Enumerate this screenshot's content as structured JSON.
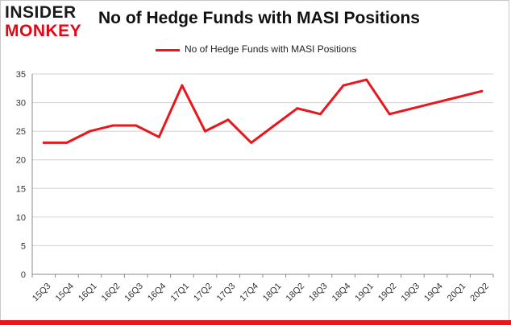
{
  "logo": {
    "line1": "INSIDER",
    "line2": "MONKEY"
  },
  "title": "No of Hedge Funds with MASI Positions",
  "colors": {
    "series": "#e8171e",
    "grid": "#d0d0d0",
    "axis": "#888888",
    "text": "#333333",
    "logo_red": "#e30613"
  },
  "chart_data": {
    "type": "line",
    "title": "No of Hedge Funds with MASI Positions",
    "xlabel": "",
    "ylabel": "",
    "categories": [
      "15Q3",
      "15Q4",
      "16Q1",
      "16Q2",
      "16Q3",
      "16Q4",
      "17Q1",
      "17Q2",
      "17Q3",
      "17Q4",
      "18Q1",
      "18Q2",
      "18Q3",
      "18Q4",
      "19Q1",
      "19Q2",
      "19Q3",
      "19Q4",
      "20Q1",
      "20Q2"
    ],
    "series": [
      {
        "name": "No of Hedge Funds with MASI Positions",
        "values": [
          23,
          23,
          25,
          26,
          26,
          24,
          33,
          25,
          27,
          23,
          26,
          29,
          28,
          33,
          34,
          28,
          29,
          30,
          31,
          32
        ]
      }
    ],
    "ylim": [
      0,
      35
    ],
    "yticks": [
      0,
      5,
      10,
      15,
      20,
      25,
      30,
      35
    ],
    "grid": true,
    "legend": "top-center"
  }
}
